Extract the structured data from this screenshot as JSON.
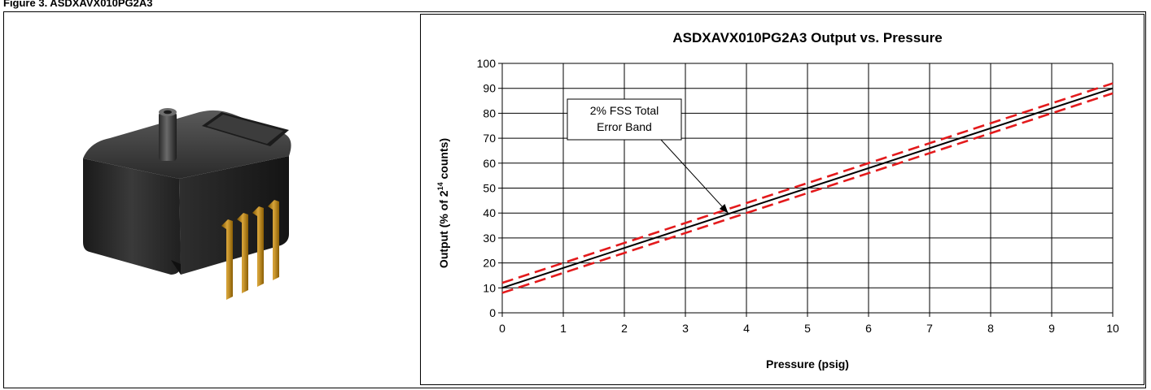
{
  "page": {
    "header_text": "Figure 3. ASDXAVX010PG2A3"
  },
  "colors": {
    "output_line": "#000000",
    "error_band": "#e31a1c",
    "grid": "#000000",
    "sensor_body": "#2b2b2b",
    "pins": "#b8860b"
  },
  "chart_data": {
    "type": "line",
    "title": "ASDXAVX010PG2A3 Output vs. Pressure",
    "xlabel": "Pressure (psig)",
    "ylabel_prefix": "Output (% of  2",
    "ylabel_sup": "14",
    "ylabel_suffix": " counts)",
    "xlim": [
      0,
      10
    ],
    "ylim": [
      0,
      100
    ],
    "xticks": [
      0,
      1,
      2,
      3,
      4,
      5,
      6,
      7,
      8,
      9,
      10
    ],
    "yticks": [
      0,
      10,
      20,
      30,
      40,
      50,
      60,
      70,
      80,
      90,
      100
    ],
    "grid": true,
    "series": [
      {
        "style": "solid",
        "x": [
          0,
          10
        ],
        "y": [
          10,
          90
        ]
      },
      {
        "style": "dashed",
        "x": [
          0,
          10
        ],
        "y": [
          12,
          92
        ]
      },
      {
        "style": "dashed",
        "x": [
          0,
          10
        ],
        "y": [
          8,
          88
        ]
      }
    ],
    "annotation": {
      "lines": [
        "2% FSS Total",
        "Error Band"
      ],
      "points_to": {
        "x": 3.7,
        "y": 40
      }
    }
  }
}
